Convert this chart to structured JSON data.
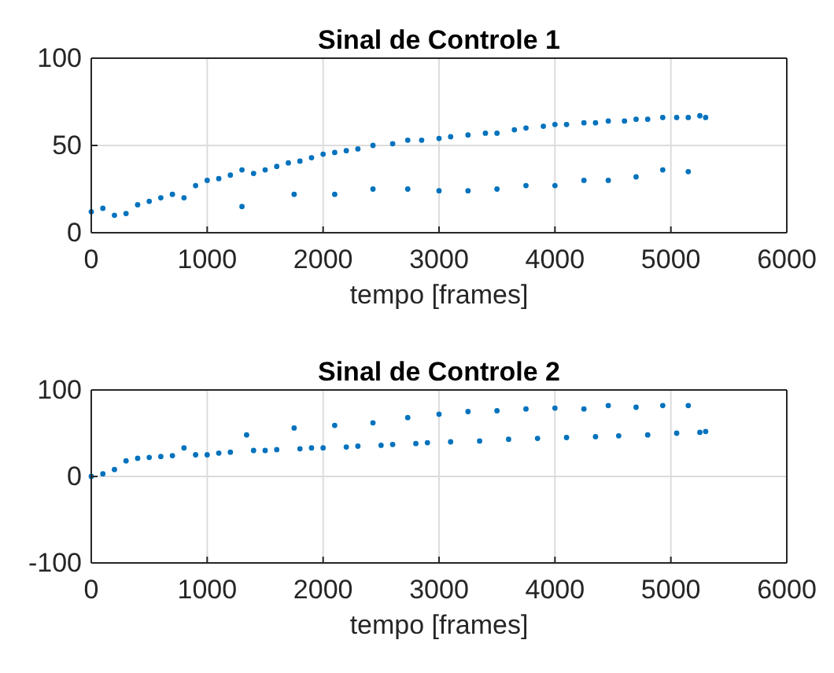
{
  "chart_data": [
    {
      "type": "scatter",
      "title": "Sinal de Controle 1",
      "xlabel": "tempo [frames]",
      "color": "#0072bd",
      "marker": "circle",
      "grid": true,
      "xlim": [
        0,
        6000
      ],
      "xticks": [
        0,
        1000,
        2000,
        3000,
        4000,
        5000,
        6000
      ],
      "ylim": [
        0,
        100
      ],
      "yticks": [
        0,
        50,
        100
      ],
      "x": [
        0,
        100,
        200,
        300,
        400,
        500,
        600,
        700,
        800,
        900,
        1000,
        1100,
        1200,
        1300,
        1300,
        1400,
        1500,
        1600,
        1700,
        1750,
        1800,
        1900,
        2000,
        2100,
        2100,
        2200,
        2300,
        2430,
        2430,
        2600,
        2730,
        2730,
        2850,
        3000,
        3000,
        3100,
        3250,
        3250,
        3400,
        3500,
        3500,
        3650,
        3750,
        3750,
        3900,
        4000,
        4000,
        4100,
        4250,
        4250,
        4350,
        4460,
        4460,
        4600,
        4700,
        4700,
        4800,
        4930,
        4930,
        5050,
        5150,
        5150,
        5250,
        5300
      ],
      "values": [
        12,
        14,
        10,
        11,
        16,
        18,
        20,
        22,
        20,
        27,
        30,
        31,
        33,
        36,
        15,
        34,
        36,
        38,
        40,
        22,
        41,
        43,
        45,
        46,
        22,
        47,
        48,
        50,
        25,
        51,
        53,
        25,
        53,
        54,
        24,
        55,
        56,
        24,
        57,
        57,
        25,
        59,
        60,
        27,
        61,
        62,
        27,
        62,
        63,
        30,
        63,
        64,
        30,
        64,
        65,
        32,
        65,
        66,
        36,
        66,
        66,
        35,
        67,
        66
      ]
    },
    {
      "type": "scatter",
      "title": "Sinal de Controle 2",
      "xlabel": "tempo [frames]",
      "color": "#0072bd",
      "marker": "circle",
      "grid": true,
      "xlim": [
        0,
        6000
      ],
      "xticks": [
        0,
        1000,
        2000,
        3000,
        4000,
        5000,
        6000
      ],
      "ylim": [
        -100,
        100
      ],
      "yticks": [
        -100,
        0,
        100
      ],
      "x": [
        0,
        100,
        200,
        300,
        400,
        500,
        600,
        700,
        800,
        900,
        1000,
        1100,
        1200,
        1340,
        1400,
        1500,
        1600,
        1750,
        1800,
        1900,
        2000,
        2100,
        2200,
        2300,
        2430,
        2500,
        2600,
        2730,
        2800,
        2900,
        3000,
        3100,
        3250,
        3350,
        3500,
        3600,
        3750,
        3850,
        4000,
        4100,
        4250,
        4350,
        4460,
        4550,
        4700,
        4800,
        4930,
        5050,
        5150,
        5250,
        5300
      ],
      "values": [
        0,
        3,
        8,
        18,
        21,
        22,
        23,
        24,
        33,
        25,
        25,
        27,
        28,
        48,
        30,
        30,
        31,
        56,
        32,
        33,
        33,
        59,
        34,
        35,
        62,
        36,
        37,
        68,
        38,
        39,
        72,
        40,
        75,
        41,
        76,
        43,
        78,
        44,
        79,
        45,
        78,
        46,
        82,
        47,
        80,
        48,
        82,
        50,
        82,
        51,
        52
      ]
    }
  ]
}
